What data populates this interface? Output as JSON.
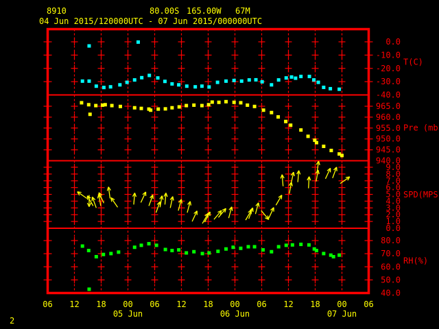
{
  "header": {
    "station_id": "8910",
    "latitude": "80.00S",
    "longitude": "165.00W",
    "elevation": "67M",
    "period": "04 Jun 2015/120000UTC - 07 Jun 2015/000000UTC"
  },
  "page_number": "2",
  "colors": {
    "background": "#000000",
    "grid": "#ff0000",
    "axis_text": "#ff0000",
    "header_text": "#ffff00",
    "temperature": "#00ffff",
    "pressure": "#ffff00",
    "wind": "#ffff00",
    "humidity": "#00ff00"
  },
  "chart_data": {
    "type": "scatter",
    "subtype": "meteogram",
    "x_axis": {
      "start": "04 Jun 2015 06UTC",
      "end": "07 Jun 2015 06UTC",
      "hours_span": 72,
      "hour_tick_labels": [
        "06",
        "12",
        "18",
        "00",
        "06",
        "12",
        "18",
        "00",
        "06",
        "12",
        "18",
        "00",
        "06"
      ],
      "date_labels": [
        {
          "text": "05 Jun",
          "tick_index": 3
        },
        {
          "text": "06 Jun",
          "tick_index": 7
        },
        {
          "text": "07 Jun",
          "tick_index": 11
        }
      ]
    },
    "panels": [
      {
        "name": "temperature",
        "label": "T(C)",
        "plot_type": "scatter",
        "color": "#00ffff",
        "ticks": [
          0,
          -10,
          -20,
          -30,
          -40
        ],
        "points": [
          [
            7.8,
            -29.6
          ],
          [
            9.3,
            -29.6
          ],
          [
            10.9,
            -33.4
          ],
          [
            12.6,
            -34.4
          ],
          [
            14.1,
            -33.9
          ],
          [
            16.2,
            -32.4
          ],
          [
            17.8,
            -30.5
          ],
          [
            19.5,
            -28.7
          ],
          [
            21.1,
            -27.0
          ],
          [
            22.8,
            -25.3
          ],
          [
            24.7,
            -27.2
          ],
          [
            26.3,
            -29.8
          ],
          [
            27.9,
            -31.7
          ],
          [
            29.4,
            -32.4
          ],
          [
            31.2,
            -33.4
          ],
          [
            33.1,
            -33.9
          ],
          [
            34.6,
            -33.4
          ],
          [
            36.2,
            -34.0
          ],
          [
            38.1,
            -30.5
          ],
          [
            40.0,
            -29.6
          ],
          [
            41.8,
            -29.1
          ],
          [
            43.5,
            -29.6
          ],
          [
            45.2,
            -28.7
          ],
          [
            46.7,
            -28.6
          ],
          [
            48.1,
            -30.1
          ],
          [
            50.2,
            -32.4
          ],
          [
            51.8,
            -28.7
          ],
          [
            53.5,
            -27.2
          ],
          [
            54.7,
            -26.5
          ],
          [
            55.6,
            -27.4
          ],
          [
            56.8,
            -26.1
          ],
          [
            58.7,
            -26.1
          ],
          [
            59.7,
            -28.7
          ],
          [
            60.7,
            -30.5
          ],
          [
            61.9,
            -34.3
          ],
          [
            63.4,
            -35.3
          ],
          [
            65.4,
            -35.7
          ]
        ],
        "outlier_points": [
          [
            9.3,
            -3.1
          ],
          [
            20.3,
            -0.2
          ]
        ]
      },
      {
        "name": "pressure",
        "label": "Pre (mb)",
        "plot_type": "scatter",
        "color": "#ffff00",
        "ticks": [
          965,
          960,
          955,
          950,
          945,
          940
        ],
        "points": [
          [
            7.6,
            966.6
          ],
          [
            9.2,
            965.7
          ],
          [
            10.8,
            965.3
          ],
          [
            12.3,
            965.5
          ],
          [
            12.9,
            965.7
          ],
          [
            14.4,
            965.3
          ],
          [
            16.3,
            964.9
          ],
          [
            19.5,
            964.3
          ],
          [
            21.0,
            964.0
          ],
          [
            22.7,
            963.7
          ],
          [
            23.1,
            963.2
          ],
          [
            24.8,
            963.7
          ],
          [
            26.4,
            963.8
          ],
          [
            27.9,
            964.3
          ],
          [
            29.5,
            964.7
          ],
          [
            31.1,
            965.3
          ],
          [
            32.8,
            965.5
          ],
          [
            34.6,
            965.3
          ],
          [
            36.1,
            965.7
          ],
          [
            36.9,
            966.9
          ],
          [
            38.4,
            966.8
          ],
          [
            40.0,
            967.1
          ],
          [
            41.8,
            966.8
          ],
          [
            43.3,
            966.6
          ],
          [
            44.8,
            965.5
          ],
          [
            46.4,
            964.9
          ],
          [
            48.4,
            963.2
          ],
          [
            50.2,
            962.1
          ],
          [
            51.7,
            960.1
          ],
          [
            53.4,
            958.0
          ],
          [
            54.5,
            956.3
          ],
          [
            56.8,
            954.1
          ],
          [
            58.4,
            951.2
          ],
          [
            59.9,
            949.4
          ],
          [
            60.3,
            948.3
          ],
          [
            61.9,
            946.6
          ],
          [
            63.6,
            944.7
          ],
          [
            65.4,
            943.1
          ],
          [
            66.0,
            942.4
          ]
        ],
        "outlier_points": [
          [
            9.5,
            961.3
          ]
        ]
      },
      {
        "name": "wind_speed",
        "label": "SPD(MPS)",
        "plot_type": "wind-arrows",
        "color": "#ffff00",
        "ticks": [
          9,
          8,
          7,
          6,
          5,
          4,
          3,
          2,
          1,
          0
        ],
        "arrows": [
          [
            8.8,
            4.4,
            -55
          ],
          [
            9.3,
            4.9,
            180
          ],
          [
            10.2,
            3.3,
            -30
          ],
          [
            10.9,
            3.0,
            -20
          ],
          [
            11.9,
            3.3,
            -10
          ],
          [
            12.6,
            3.7,
            -25
          ],
          [
            14.0,
            4.4,
            -8
          ],
          [
            15.7,
            3.1,
            -35
          ],
          [
            19.3,
            3.5,
            5
          ],
          [
            20.9,
            3.8,
            25
          ],
          [
            22.7,
            3.3,
            20
          ],
          [
            24.3,
            2.3,
            20
          ],
          [
            25.2,
            3.1,
            10
          ],
          [
            26.3,
            3.5,
            5
          ],
          [
            27.5,
            3.0,
            12
          ],
          [
            29.3,
            2.6,
            15
          ],
          [
            31.3,
            2.3,
            15
          ],
          [
            32.4,
            1.0,
            25
          ],
          [
            34.7,
            0.7,
            30
          ],
          [
            35.2,
            0.9,
            28
          ],
          [
            37.3,
            1.3,
            40
          ],
          [
            38.3,
            1.6,
            40
          ],
          [
            40.6,
            1.5,
            15
          ],
          [
            44.4,
            1.2,
            30
          ],
          [
            45.1,
            1.4,
            20
          ],
          [
            46.6,
            2.1,
            15
          ],
          [
            47.9,
            2.6,
            140
          ],
          [
            49.6,
            1.5,
            25
          ],
          [
            51.2,
            3.4,
            30
          ],
          [
            52.8,
            6.2,
            -5
          ],
          [
            54.2,
            5.1,
            10
          ],
          [
            54.6,
            6.6,
            12
          ],
          [
            56.1,
            6.8,
            5
          ],
          [
            58.5,
            5.9,
            3
          ],
          [
            60.2,
            6.9,
            10
          ],
          [
            60.4,
            8.2,
            8
          ],
          [
            62.3,
            7.3,
            25
          ],
          [
            63.9,
            7.4,
            20
          ],
          [
            65.6,
            6.6,
            55
          ]
        ]
      },
      {
        "name": "relative_humidity",
        "label": "RH(%)",
        "plot_type": "scatter",
        "color": "#00ff00",
        "ticks": [
          80,
          70,
          60,
          50,
          40
        ],
        "points": [
          [
            7.8,
            75.8
          ],
          [
            9.2,
            72.4
          ],
          [
            10.9,
            67.7
          ],
          [
            12.5,
            69.4
          ],
          [
            14.2,
            70.1
          ],
          [
            15.9,
            71.2
          ],
          [
            19.5,
            74.9
          ],
          [
            21.0,
            76.4
          ],
          [
            22.7,
            77.6
          ],
          [
            24.4,
            76.4
          ],
          [
            26.4,
            73.2
          ],
          [
            27.9,
            72.4
          ],
          [
            29.4,
            72.9
          ],
          [
            31.1,
            70.6
          ],
          [
            32.8,
            71.5
          ],
          [
            34.7,
            70.1
          ],
          [
            36.2,
            70.6
          ],
          [
            38.2,
            71.8
          ],
          [
            40.0,
            73.6
          ],
          [
            41.6,
            74.9
          ],
          [
            43.3,
            74.1
          ],
          [
            45.0,
            75.3
          ],
          [
            46.4,
            75.3
          ],
          [
            48.3,
            72.9
          ],
          [
            50.2,
            71.5
          ],
          [
            51.8,
            75.3
          ],
          [
            53.5,
            76.4
          ],
          [
            54.9,
            76.7
          ],
          [
            56.8,
            77.1
          ],
          [
            58.6,
            76.7
          ],
          [
            59.8,
            73.6
          ],
          [
            60.3,
            72.4
          ],
          [
            61.9,
            70.1
          ],
          [
            63.5,
            68.9
          ],
          [
            64.1,
            67.7
          ],
          [
            65.4,
            68.9
          ]
        ],
        "outlier_points": [
          [
            9.3,
            42.9
          ]
        ]
      }
    ]
  }
}
